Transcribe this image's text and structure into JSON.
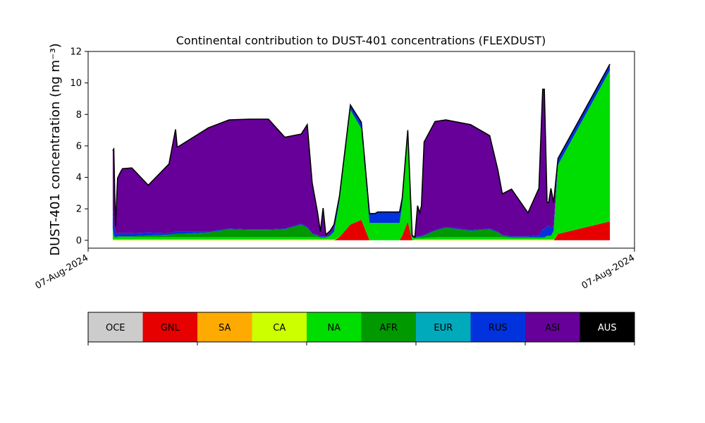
{
  "chart_data": {
    "type": "area",
    "title": "Continental contribution to DUST-401 concentrations (FLEXDUST)",
    "ylabel": "DUST-401 concentration (ng m⁻³)",
    "ylim": [
      -0.5,
      12
    ],
    "yticks": [
      0,
      2,
      4,
      6,
      8,
      10,
      12
    ],
    "xlim": [
      0,
      100
    ],
    "xtick_labels": [
      "07-Aug-2024",
      "07-Aug-2024"
    ],
    "grid": false,
    "stack_order": [
      "OCE",
      "GNL",
      "SA",
      "CA",
      "NA",
      "AFR",
      "EUR",
      "RUS",
      "ASI",
      "AUS"
    ],
    "x": [
      4.5,
      4.7,
      5.0,
      5.4,
      5.8,
      6.1,
      6.3,
      8.0,
      11.0,
      14.8,
      16.0,
      16.3,
      16.5,
      22.0,
      25.8,
      29.5,
      33.0,
      36.0,
      39.0,
      40.1,
      41.0,
      42.0,
      42.5,
      43.0,
      43.5,
      44.3,
      45.0,
      46.0,
      48.0,
      50.0,
      51.5,
      52.5,
      53.0,
      54.0,
      57.0,
      57.5,
      58.5,
      59.3,
      59.8,
      60.3,
      60.7,
      61.0,
      61.5,
      63.5,
      65.5,
      70.0,
      73.5,
      75.0,
      75.8,
      77.5,
      80.5,
      82.5,
      83.2,
      83.5,
      84.0,
      84.3,
      84.7,
      85.2,
      86.0,
      95.5
    ],
    "series": [
      {
        "name": "GNL",
        "color": "#e60000",
        "values": [
          0,
          0,
          0,
          0,
          0,
          0,
          0,
          0,
          0,
          0,
          0,
          0,
          0,
          0,
          0,
          0,
          0,
          0,
          0,
          0,
          0,
          0,
          0,
          0,
          0,
          0,
          0,
          0.2,
          1.0,
          1.3,
          0,
          0,
          0,
          0,
          0,
          0.3,
          1.2,
          0,
          0,
          0,
          0,
          0,
          0,
          0,
          0,
          0,
          0,
          0,
          0,
          0,
          0,
          0,
          0,
          0,
          0,
          0,
          0,
          0,
          0.4,
          1.2
        ]
      },
      {
        "name": "SA",
        "color": "#ffaa00",
        "values": [
          0,
          0,
          0,
          0,
          0,
          0,
          0,
          0,
          0,
          0,
          0,
          0,
          0,
          0,
          0,
          0,
          0,
          0,
          0,
          0,
          0,
          0,
          0,
          0,
          0,
          0,
          0,
          0,
          0,
          0,
          0,
          0,
          0,
          0,
          0,
          0,
          0,
          0,
          0,
          0,
          0,
          0,
          0,
          0,
          0,
          0,
          0,
          0,
          0,
          0,
          0,
          0,
          0,
          0,
          0,
          0,
          0,
          0,
          0,
          0
        ]
      },
      {
        "name": "CA",
        "color": "#ccff00",
        "values": [
          0.05,
          0.05,
          0.05,
          0.05,
          0.05,
          0.05,
          0.05,
          0.05,
          0.05,
          0.05,
          0.05,
          0.05,
          0.05,
          0.05,
          0.05,
          0.05,
          0.05,
          0.05,
          0.05,
          0.05,
          0.05,
          0.05,
          0.05,
          0.05,
          0.05,
          0.05,
          0.05,
          0,
          0,
          0,
          0,
          0,
          0,
          0,
          0,
          0,
          0,
          0,
          0.05,
          0.05,
          0.05,
          0.05,
          0.05,
          0.05,
          0.05,
          0.05,
          0.05,
          0.05,
          0.05,
          0.05,
          0.05,
          0.05,
          0.05,
          0.05,
          0.05,
          0.05,
          0.05,
          0.05,
          0,
          0
        ]
      },
      {
        "name": "NA",
        "color": "#00dd00",
        "values": [
          0.7,
          0.2,
          0.1,
          0.15,
          0.15,
          0.15,
          0.15,
          0.15,
          0.15,
          0.15,
          0.15,
          0.15,
          0.15,
          0.15,
          0.15,
          0.15,
          0.15,
          0.15,
          0.15,
          0.15,
          0.15,
          0.15,
          0.1,
          0.1,
          0.1,
          0.2,
          0.5,
          2.3,
          7.3,
          5.8,
          1.1,
          1.1,
          1.1,
          1.1,
          1.1,
          2.0,
          5.7,
          0.2,
          0.1,
          0.1,
          0.1,
          0.1,
          0.1,
          0.15,
          0.15,
          0.15,
          0.15,
          0.15,
          0.15,
          0.1,
          0.1,
          0.1,
          0.1,
          0.1,
          0.2,
          0.2,
          0.2,
          0.5,
          4.4,
          9.6
        ]
      },
      {
        "name": "AFR",
        "color": "#009900",
        "values": [
          0.05,
          0.05,
          0.05,
          0.05,
          0.05,
          0.05,
          0.05,
          0.05,
          0.1,
          0.15,
          0.2,
          0.2,
          0.2,
          0.3,
          0.5,
          0.45,
          0.45,
          0.5,
          0.8,
          0.6,
          0.2,
          0.1,
          0.05,
          0.05,
          0.05,
          0.05,
          0,
          0,
          0,
          0,
          0,
          0,
          0,
          0,
          0,
          0,
          0,
          0,
          0,
          0.05,
          0.05,
          0.1,
          0.15,
          0.4,
          0.6,
          0.4,
          0.5,
          0.3,
          0.1,
          0.05,
          0.05,
          0.05,
          0.05,
          0.05,
          0.05,
          0.05,
          0.05,
          0.05,
          0,
          0
        ]
      },
      {
        "name": "EUR",
        "color": "#00aabb",
        "values": [
          0,
          0,
          0,
          0,
          0,
          0,
          0,
          0,
          0,
          0,
          0,
          0,
          0,
          0,
          0,
          0,
          0,
          0,
          0,
          0,
          0,
          0,
          0,
          0,
          0,
          0,
          0,
          0,
          0,
          0,
          0,
          0,
          0,
          0,
          0,
          0,
          0,
          0,
          0,
          0,
          0,
          0,
          0,
          0,
          0,
          0,
          0,
          0,
          0,
          0,
          0,
          0,
          0,
          0,
          0,
          0,
          0,
          0,
          0,
          0
        ]
      },
      {
        "name": "RUS",
        "color": "#0033dd",
        "values": [
          1.2,
          0.8,
          0.2,
          0.2,
          0.2,
          0.2,
          0.2,
          0.2,
          0.2,
          0.1,
          0.15,
          0.15,
          0.15,
          0.05,
          0.05,
          0.05,
          0.05,
          0.05,
          0.05,
          0.05,
          0.05,
          0.05,
          0.05,
          0.05,
          0.05,
          0.1,
          0.25,
          0.3,
          0.3,
          0.4,
          0.6,
          0.6,
          0.7,
          0.7,
          0.7,
          0.4,
          0.1,
          0.1,
          0.05,
          0.05,
          0.05,
          0.05,
          0.05,
          0.05,
          0.05,
          0.05,
          0.05,
          0.05,
          0.05,
          0.05,
          0.05,
          0.1,
          0.5,
          0.5,
          0.6,
          0.6,
          0.5,
          0.3,
          0.4,
          0.4
        ]
      },
      {
        "name": "ASI",
        "color": "#660099",
        "values": [
          3.7,
          4.7,
          0.5,
          3.5,
          3.8,
          4.0,
          4.1,
          4.15,
          3.0,
          4.4,
          6.5,
          5.4,
          5.4,
          6.6,
          6.9,
          7.0,
          7.0,
          5.8,
          5.7,
          6.5,
          3.2,
          1.4,
          0.3,
          1.8,
          0.1,
          0.2,
          0.2,
          0,
          0,
          0,
          0,
          0,
          0,
          0,
          0,
          0,
          0,
          0,
          0,
          1.95,
          1.5,
          1.9,
          5.9,
          6.9,
          6.8,
          6.7,
          5.9,
          3.9,
          2.6,
          3.0,
          1.5,
          3.0,
          8.9,
          8.9,
          1.5,
          1.5,
          2.5,
          1.5,
          0,
          0
        ]
      },
      {
        "name": "AUS",
        "color": "#000000",
        "values": [
          0,
          0,
          0,
          0,
          0,
          0,
          0,
          0,
          0,
          0,
          0,
          0,
          0,
          0,
          0,
          0,
          0,
          0,
          0,
          0,
          0,
          0,
          0,
          0,
          0,
          0,
          0,
          0,
          0,
          0,
          0,
          0,
          0,
          0,
          0,
          0,
          0,
          0,
          0,
          0,
          0,
          0,
          0,
          0,
          0,
          0,
          0,
          0,
          0,
          0,
          0,
          0,
          0,
          0,
          0,
          0,
          0,
          0,
          0,
          0
        ]
      }
    ],
    "total_line_color": "#000000",
    "legend": {
      "placement": "below",
      "entries": [
        {
          "name": "OCE",
          "color": "#cccccc"
        },
        {
          "name": "GNL",
          "color": "#e60000"
        },
        {
          "name": "SA",
          "color": "#ffaa00"
        },
        {
          "name": "CA",
          "color": "#ccff00"
        },
        {
          "name": "NA",
          "color": "#00dd00"
        },
        {
          "name": "AFR",
          "color": "#009900"
        },
        {
          "name": "EUR",
          "color": "#00aabb"
        },
        {
          "name": "RUS",
          "color": "#0033dd"
        },
        {
          "name": "ASI",
          "color": "#660099"
        },
        {
          "name": "AUS",
          "color": "#000000"
        }
      ]
    }
  }
}
